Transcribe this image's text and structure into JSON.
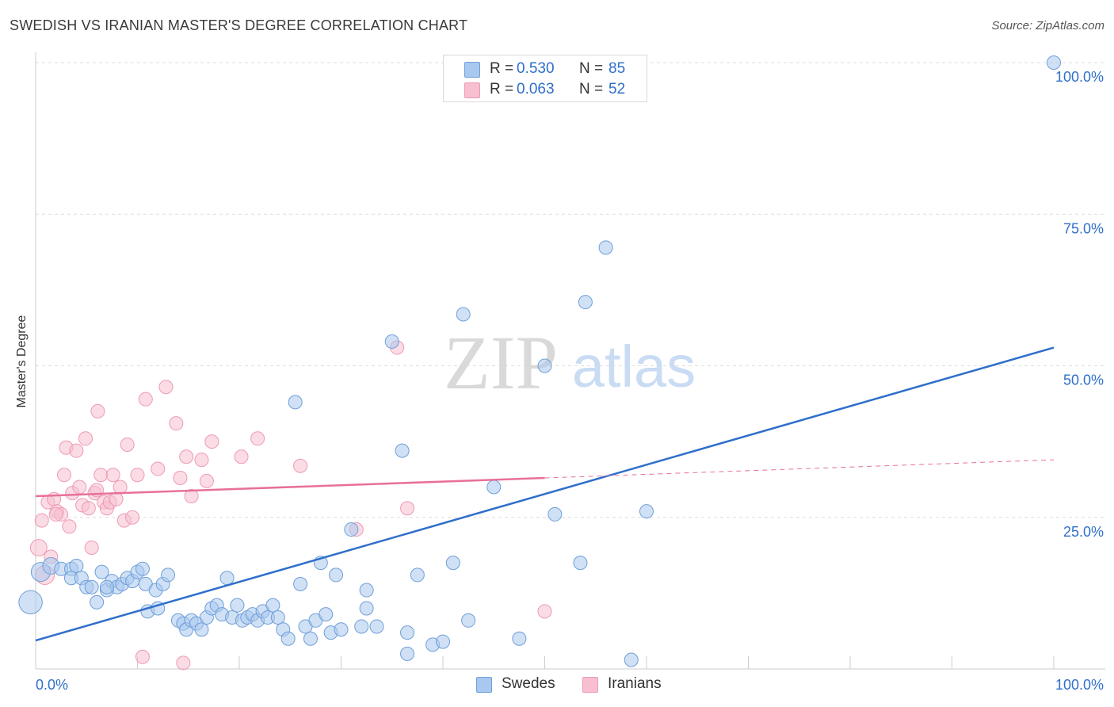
{
  "header": {
    "title": "SWEDISH VS IRANIAN MASTER'S DEGREE CORRELATION CHART",
    "source": "Source: ZipAtlas.com"
  },
  "watermark": {
    "zip": "ZIP",
    "atlas": "atlas"
  },
  "legend": {
    "swedes": {
      "r_label": "R =",
      "r_value": "0.530",
      "n_label": "N =",
      "n_value": "85"
    },
    "iranians": {
      "r_label": "R =",
      "r_value": "0.063",
      "n_label": "N =",
      "n_value": "52"
    }
  },
  "bottom_legend": {
    "swedes": "Swedes",
    "iranians": "Iranians"
  },
  "colors": {
    "swedes_fill": "#a9c8ef",
    "swedes_stroke": "#6f9fd8",
    "swedes_line": "#2f6fca",
    "iranians_fill": "#f7bfd0",
    "iranians_stroke": "#ee9ab4",
    "iranians_line": "#e8709a",
    "axis_text": "#2f6fca",
    "grid": "#dddddd"
  },
  "chart_data": {
    "type": "scatter",
    "ylabel": "Master's Degree",
    "xlim": [
      0,
      100
    ],
    "ylim": [
      0,
      100
    ],
    "x_tick_labels": [
      "0.0%",
      "100.0%"
    ],
    "y_tick_labels": [
      "25.0%",
      "50.0%",
      "75.0%",
      "100.0%"
    ],
    "y_ticks": [
      25,
      50,
      75,
      100
    ],
    "series": [
      {
        "name": "Swedes",
        "r": 0.53,
        "n": 85,
        "trend": {
          "x": [
            0,
            100
          ],
          "y": [
            4.7,
            53.0
          ]
        },
        "points": [
          [
            -0.5,
            11.0,
            3
          ],
          [
            0.5,
            16.0,
            2
          ],
          [
            1.5,
            17.0,
            1.5
          ],
          [
            2.5,
            16.5,
            1
          ],
          [
            3.5,
            16.5,
            1
          ],
          [
            4.0,
            17.0,
            1
          ],
          [
            3.5,
            15.0,
            1
          ],
          [
            4.5,
            15.0,
            1
          ],
          [
            5.0,
            13.5,
            1
          ],
          [
            5.5,
            13.5,
            1
          ],
          [
            6.0,
            11.0,
            1
          ],
          [
            6.5,
            16.0,
            1
          ],
          [
            7.0,
            13.0,
            1
          ],
          [
            7.5,
            14.5,
            1
          ],
          [
            8.0,
            13.5,
            1
          ],
          [
            8.5,
            14.0,
            1
          ],
          [
            9.0,
            15.0,
            1
          ],
          [
            9.5,
            14.5,
            1
          ],
          [
            10.0,
            16.0,
            1
          ],
          [
            10.5,
            16.5,
            1
          ],
          [
            10.8,
            14.0,
            1
          ],
          [
            11.0,
            9.5,
            1
          ],
          [
            11.8,
            13.0,
            1
          ],
          [
            12.0,
            10.0,
            1
          ],
          [
            12.5,
            14.0,
            1
          ],
          [
            13.0,
            15.5,
            1
          ],
          [
            14.0,
            8.0,
            1
          ],
          [
            14.5,
            7.5,
            1
          ],
          [
            14.8,
            6.5,
            1
          ],
          [
            15.3,
            8.0,
            1
          ],
          [
            15.8,
            7.5,
            1
          ],
          [
            16.3,
            6.5,
            1
          ],
          [
            16.8,
            8.5,
            1
          ],
          [
            17.3,
            10.0,
            1
          ],
          [
            17.8,
            10.5,
            1
          ],
          [
            18.3,
            9.0,
            1
          ],
          [
            18.8,
            15.0,
            1
          ],
          [
            19.3,
            8.5,
            1
          ],
          [
            19.8,
            10.5,
            1
          ],
          [
            20.3,
            8.0,
            1
          ],
          [
            20.8,
            8.5,
            1
          ],
          [
            21.3,
            9.0,
            1
          ],
          [
            21.8,
            8.0,
            1
          ],
          [
            22.3,
            9.5,
            1
          ],
          [
            22.8,
            8.5,
            1
          ],
          [
            23.3,
            10.5,
            1
          ],
          [
            23.8,
            8.5,
            1
          ],
          [
            24.3,
            6.5,
            1
          ],
          [
            24.8,
            5.0,
            1
          ],
          [
            25.5,
            44.0,
            1
          ],
          [
            26.0,
            14.0,
            1
          ],
          [
            26.5,
            7.0,
            1
          ],
          [
            27.0,
            5.0,
            1
          ],
          [
            27.5,
            8.0,
            1
          ],
          [
            28.0,
            17.5,
            1
          ],
          [
            28.5,
            9.0,
            1
          ],
          [
            29.0,
            6.0,
            1
          ],
          [
            29.5,
            15.5,
            1
          ],
          [
            30.0,
            6.5,
            1
          ],
          [
            31.0,
            23.0,
            1
          ],
          [
            32.0,
            7.0,
            1
          ],
          [
            32.5,
            13.0,
            1
          ],
          [
            32.5,
            10.0,
            1
          ],
          [
            33.5,
            7.0,
            1
          ],
          [
            35.0,
            54.0,
            1
          ],
          [
            36.0,
            36.0,
            1
          ],
          [
            36.5,
            6.0,
            1
          ],
          [
            36.5,
            2.5,
            1
          ],
          [
            37.5,
            15.5,
            1
          ],
          [
            39.0,
            4.0,
            1
          ],
          [
            40.0,
            4.5,
            1
          ],
          [
            41.0,
            17.5,
            1
          ],
          [
            42.0,
            58.5,
            1
          ],
          [
            42.5,
            8.0,
            1
          ],
          [
            45.0,
            30.0,
            1
          ],
          [
            47.5,
            5.0,
            1
          ],
          [
            50.0,
            50.0,
            1
          ],
          [
            51.0,
            25.5,
            1
          ],
          [
            53.5,
            17.5,
            1
          ],
          [
            54.0,
            60.5,
            1
          ],
          [
            56.0,
            69.5,
            1
          ],
          [
            58.5,
            1.5,
            1
          ],
          [
            60.0,
            26.0,
            1
          ],
          [
            100.0,
            100.0,
            1
          ],
          [
            7.0,
            13.5,
            1
          ]
        ]
      },
      {
        "name": "Iranians",
        "r": 0.063,
        "n": 52,
        "trend": {
          "x": [
            0,
            50
          ],
          "y": [
            28.5,
            31.5
          ]
        },
        "trend_dashed": {
          "x": [
            50,
            100
          ],
          "y": [
            31.5,
            34.5
          ]
        },
        "points": [
          [
            0.3,
            20.0,
            1.5
          ],
          [
            0.6,
            24.5,
            1
          ],
          [
            0.9,
            15.5,
            2
          ],
          [
            1.2,
            27.5,
            1
          ],
          [
            1.5,
            18.5,
            1
          ],
          [
            1.8,
            28.0,
            1
          ],
          [
            2.1,
            26.0,
            1
          ],
          [
            2.5,
            25.5,
            1
          ],
          [
            2.8,
            32.0,
            1
          ],
          [
            3.0,
            36.5,
            1
          ],
          [
            3.3,
            23.5,
            1
          ],
          [
            3.6,
            29.0,
            1
          ],
          [
            4.0,
            36.0,
            1
          ],
          [
            4.3,
            30.0,
            1
          ],
          [
            4.6,
            27.0,
            1
          ],
          [
            4.9,
            38.0,
            1
          ],
          [
            5.2,
            26.5,
            1
          ],
          [
            5.5,
            20.0,
            1
          ],
          [
            5.8,
            29.0,
            1
          ],
          [
            6.1,
            42.5,
            1
          ],
          [
            6.4,
            32.0,
            1
          ],
          [
            6.7,
            27.5,
            1
          ],
          [
            7.0,
            26.5,
            1
          ],
          [
            7.3,
            27.5,
            1
          ],
          [
            7.6,
            32.0,
            1
          ],
          [
            7.9,
            28.0,
            1
          ],
          [
            8.3,
            30.0,
            1
          ],
          [
            8.7,
            24.5,
            1
          ],
          [
            9.0,
            37.0,
            1
          ],
          [
            9.5,
            25.0,
            1
          ],
          [
            10.0,
            32.0,
            1
          ],
          [
            10.5,
            2.0,
            1
          ],
          [
            10.8,
            44.5,
            1
          ],
          [
            12.0,
            33.0,
            1
          ],
          [
            12.8,
            46.5,
            1
          ],
          [
            13.8,
            40.5,
            1
          ],
          [
            14.2,
            31.5,
            1
          ],
          [
            14.5,
            1.0,
            1
          ],
          [
            14.8,
            35.0,
            1
          ],
          [
            15.3,
            28.5,
            1
          ],
          [
            16.3,
            34.5,
            1
          ],
          [
            16.8,
            31.0,
            1
          ],
          [
            17.3,
            37.5,
            1
          ],
          [
            20.2,
            35.0,
            1
          ],
          [
            21.8,
            38.0,
            1
          ],
          [
            26.0,
            33.5,
            1
          ],
          [
            31.5,
            23.0,
            1
          ],
          [
            35.5,
            53.0,
            1
          ],
          [
            36.5,
            26.5,
            1
          ],
          [
            50.0,
            9.5,
            1
          ],
          [
            2.0,
            25.5,
            1
          ],
          [
            6.0,
            29.5,
            1
          ]
        ]
      }
    ]
  }
}
